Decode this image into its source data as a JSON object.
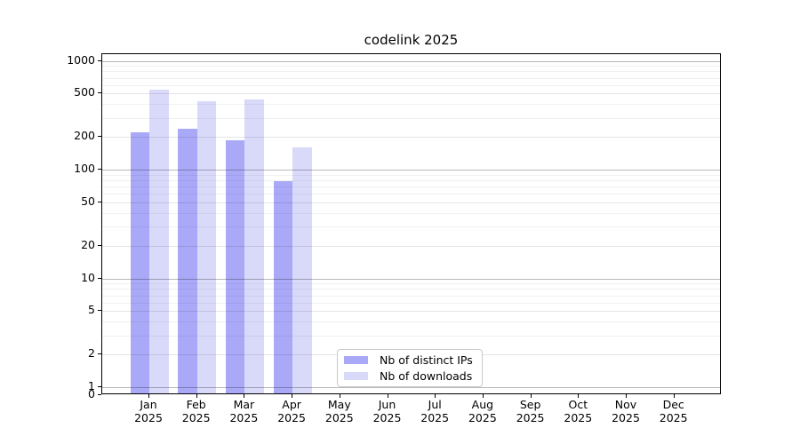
{
  "title": "codelink 2025",
  "y_axis": {
    "tick_labels": [
      "0",
      "1",
      "2",
      "5",
      "10",
      "20",
      "50",
      "100",
      "200",
      "500",
      "1000"
    ],
    "tick_values": [
      0,
      1,
      2,
      5,
      10,
      20,
      50,
      100,
      200,
      500,
      1000
    ]
  },
  "x_axis": {
    "months": [
      "Jan",
      "Feb",
      "Mar",
      "Apr",
      "May",
      "Jun",
      "Jul",
      "Aug",
      "Sep",
      "Oct",
      "Nov",
      "Dec"
    ],
    "year": "2025"
  },
  "legend": {
    "items": [
      {
        "label": "Nb of distinct IPs",
        "color": "#a9a9f7"
      },
      {
        "label": "Nb of downloads",
        "color": "#d9d9fa"
      }
    ]
  },
  "colors": {
    "bar_distinct_ips": "#a9a9f7",
    "bar_downloads": "#d9d9fa",
    "grid_decade": "rgba(0,0,0,0.28)",
    "grid_sub": "rgba(0,0,0,0.10)",
    "grid_minor": "rgba(0,0,0,0.055)",
    "spine": "#000000"
  },
  "chart_data": {
    "type": "bar",
    "title": "codelink 2025",
    "categories": [
      "Jan 2025",
      "Feb 2025",
      "Mar 2025",
      "Apr 2025",
      "May 2025",
      "Jun 2025",
      "Jul 2025",
      "Aug 2025",
      "Sep 2025",
      "Oct 2025",
      "Nov 2025",
      "Dec 2025"
    ],
    "series": [
      {
        "name": "Nb of distinct IPs",
        "color": "#a9a9f7",
        "values": [
          212,
          230,
          179,
          76,
          null,
          null,
          null,
          null,
          null,
          null,
          null,
          null
        ]
      },
      {
        "name": "Nb of downloads",
        "color": "#d9d9fa",
        "values": [
          524,
          411,
          427,
          153,
          null,
          null,
          null,
          null,
          null,
          null,
          null,
          null
        ]
      }
    ],
    "yscale": "symlog",
    "yticks": [
      0,
      1,
      2,
      5,
      10,
      20,
      50,
      100,
      200,
      500,
      1000
    ],
    "ylim": [
      0,
      1120
    ],
    "grid": true,
    "minor_grid": true,
    "legend_position": "lower center"
  }
}
